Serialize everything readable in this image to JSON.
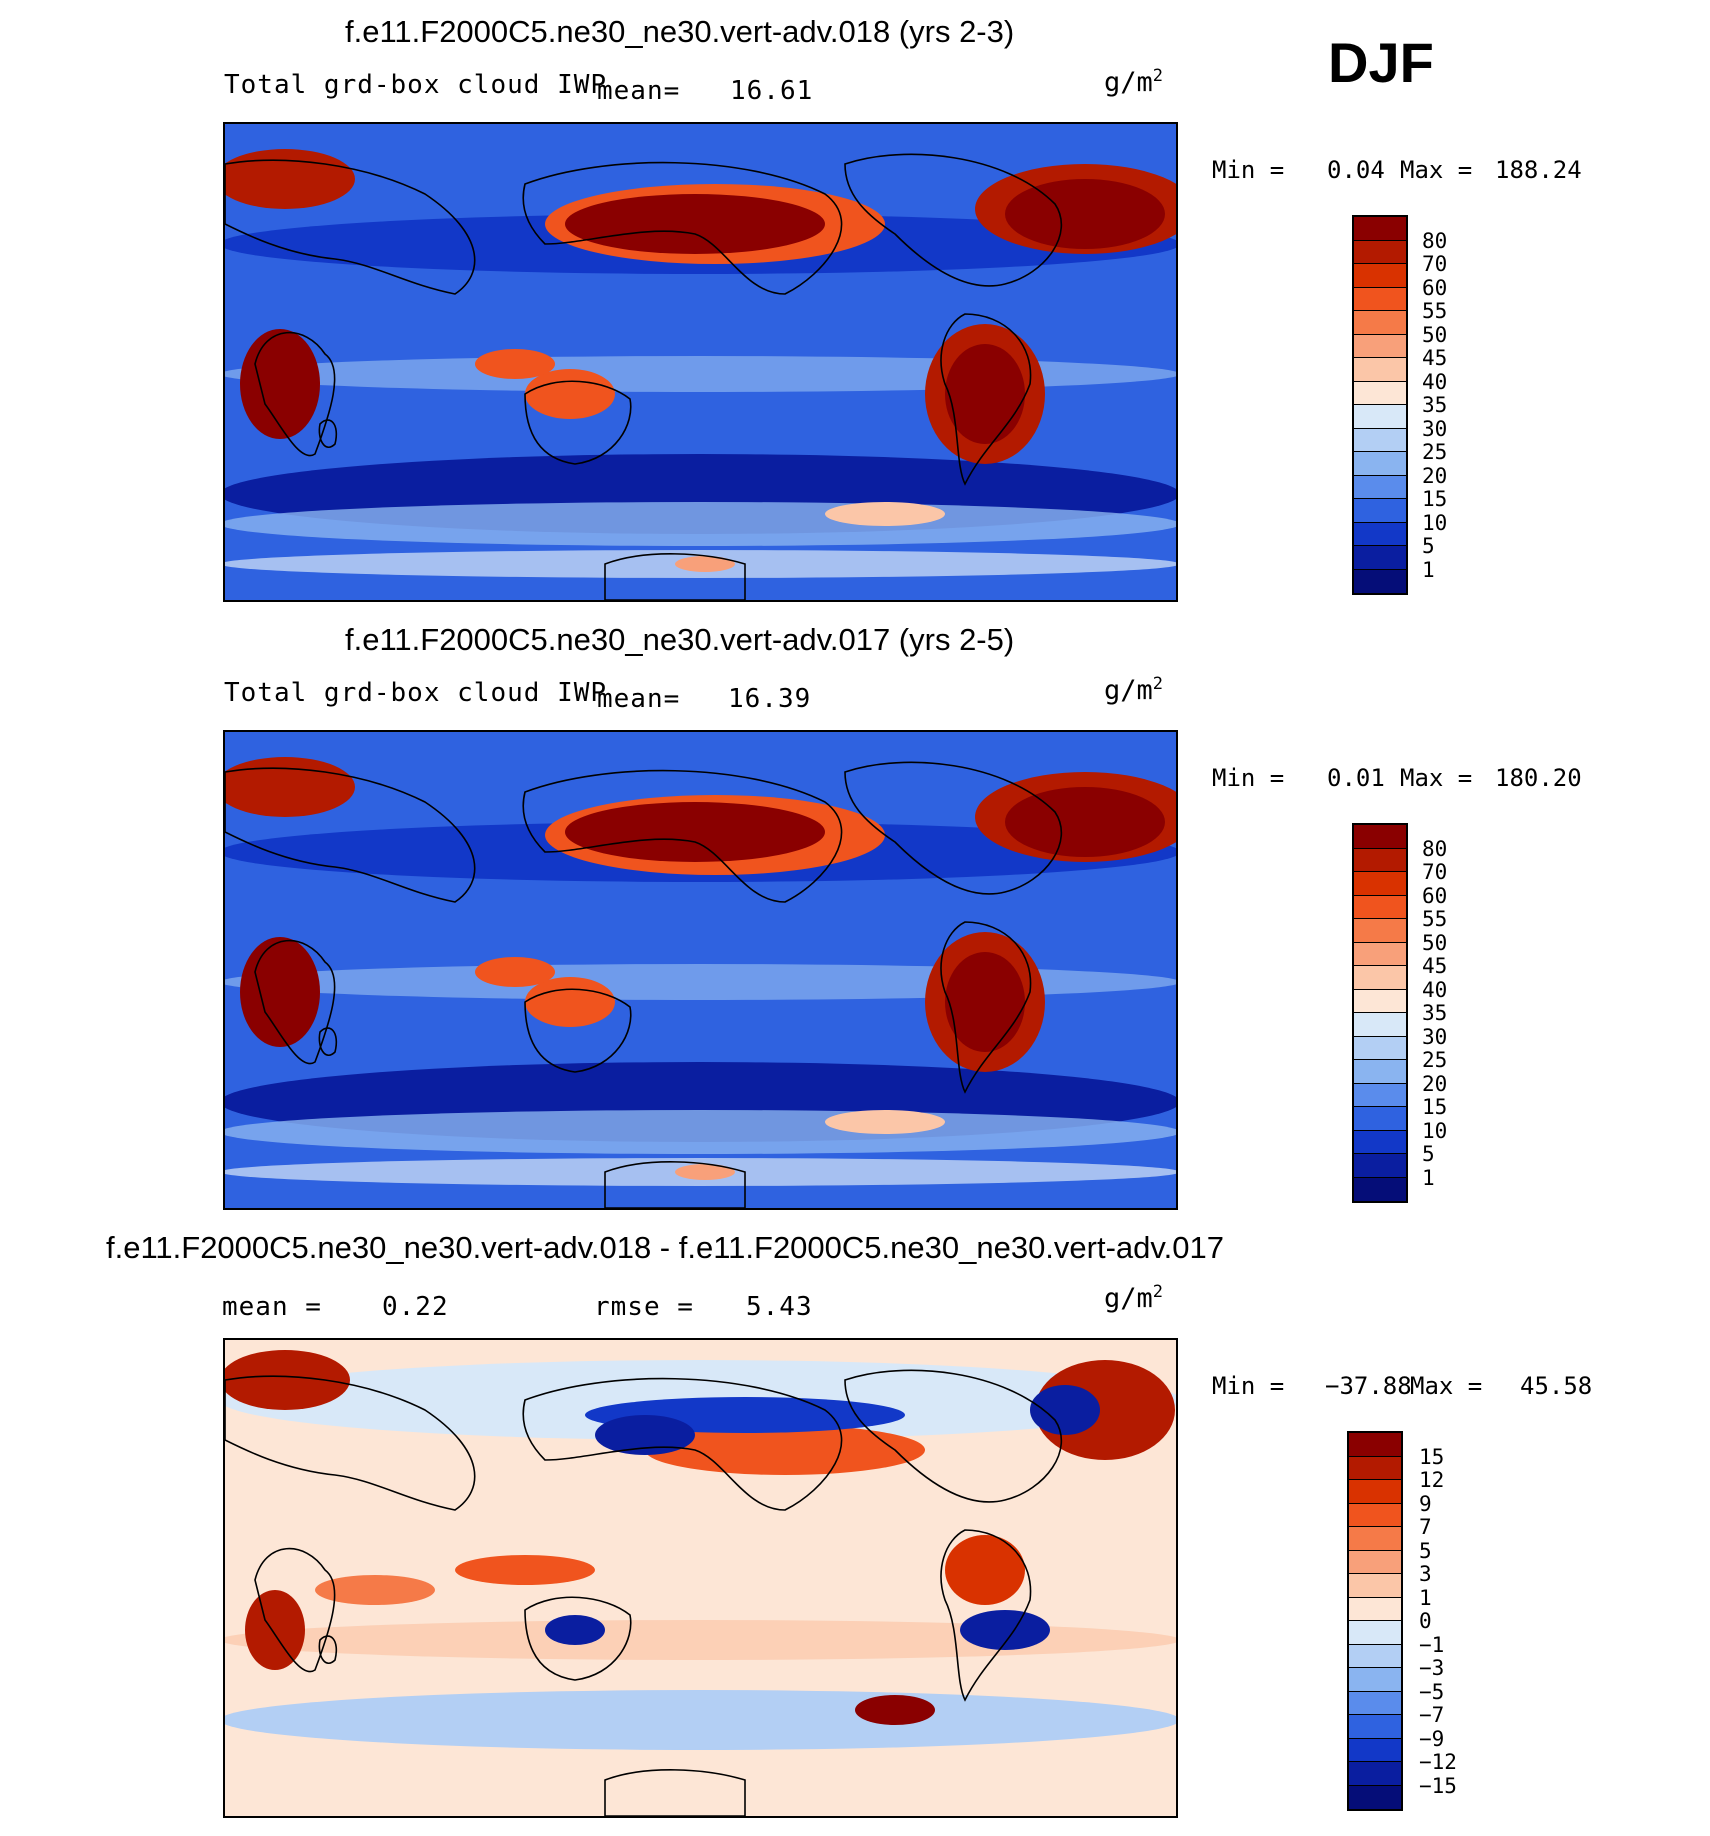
{
  "season": "DJF",
  "units_base": "g/m",
  "units_exp": "2",
  "panels": [
    {
      "title": "f.e11.F2000C5.ne30_ne30.vert-adv.018 (yrs 2-3)",
      "variable": "Total grd-box cloud IWP",
      "stat1_label": "mean=",
      "stat1_value": "16.61",
      "stat2_label": "",
      "stat2_value": "",
      "min_label": "Min =",
      "min_value": "0.04",
      "max_label": "Max =",
      "max_value": "188.24",
      "scale": "abs"
    },
    {
      "title": "f.e11.F2000C5.ne30_ne30.vert-adv.017 (yrs 2-5)",
      "variable": "Total grd-box cloud IWP",
      "stat1_label": "mean=",
      "stat1_value": "16.39",
      "stat2_label": "",
      "stat2_value": "",
      "min_label": "Min =",
      "min_value": "0.01",
      "max_label": "Max =",
      "max_value": "180.20",
      "scale": "abs"
    },
    {
      "title": "f.e11.F2000C5.ne30_ne30.vert-adv.018 - f.e11.F2000C5.ne30_ne30.vert-adv.017",
      "variable": "",
      "stat1_label": "mean =",
      "stat1_value": "0.22",
      "stat2_label": "rmse =",
      "stat2_value": "5.43",
      "min_label": "Min =",
      "min_value": "−37.88",
      "max_label": "Max =",
      "max_value": "45.58",
      "scale": "diff"
    }
  ],
  "colorbars": {
    "abs": {
      "labels": [
        "80",
        "70",
        "60",
        "55",
        "50",
        "45",
        "40",
        "35",
        "30",
        "25",
        "20",
        "15",
        "10",
        "5",
        "1"
      ],
      "colors": [
        "#8a0000",
        "#b31a00",
        "#d93200",
        "#f0541e",
        "#f57a48",
        "#f8a07a",
        "#fbc6a8",
        "#fde6d6",
        "#d8e8f8",
        "#b3cff4",
        "#8ab4f0",
        "#5a8cec",
        "#2f62e0",
        "#1238c8",
        "#0a1ea0",
        "#050d78"
      ]
    },
    "diff": {
      "labels": [
        "15",
        "12",
        "9",
        "7",
        "5",
        "3",
        "1",
        "0",
        "−1",
        "−3",
        "−5",
        "−7",
        "−9",
        "−12",
        "−15"
      ],
      "colors": [
        "#8a0000",
        "#b31a00",
        "#d93200",
        "#f0541e",
        "#f57a48",
        "#f8a07a",
        "#fbc6a8",
        "#fde6d6",
        "#d8e8f8",
        "#b3cff4",
        "#8ab4f0",
        "#5a8cec",
        "#2f62e0",
        "#1238c8",
        "#0a1ea0",
        "#050d78"
      ]
    }
  }
}
